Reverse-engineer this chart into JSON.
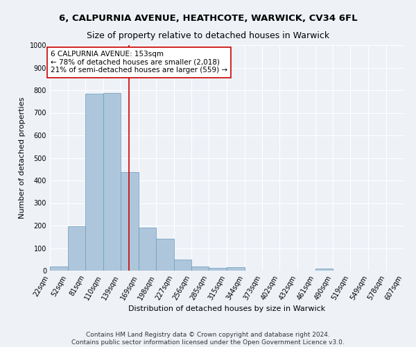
{
  "title": "6, CALPURNIA AVENUE, HEATHCOTE, WARWICK, CV34 6FL",
  "subtitle": "Size of property relative to detached houses in Warwick",
  "xlabel": "Distribution of detached houses by size in Warwick",
  "ylabel": "Number of detached properties",
  "bar_color": "#aec6db",
  "bar_edge_color": "#6699bb",
  "vline_color": "#cc0000",
  "vline_x": 153,
  "annotation_text": "6 CALPURNIA AVENUE: 153sqm\n← 78% of detached houses are smaller (2,018)\n21% of semi-detached houses are larger (559) →",
  "annotation_box_color": "#ffffff",
  "annotation_box_edge_color": "#cc0000",
  "footer_text": "Contains HM Land Registry data © Crown copyright and database right 2024.\nContains public sector information licensed under the Open Government Licence v3.0.",
  "bin_edges": [
    22,
    52,
    81,
    110,
    139,
    169,
    198,
    227,
    256,
    285,
    315,
    344,
    373,
    402,
    432,
    461,
    490,
    519,
    549,
    578,
    607
  ],
  "bar_heights": [
    20,
    197,
    785,
    788,
    437,
    190,
    142,
    50,
    17,
    13,
    14,
    0,
    0,
    0,
    0,
    10,
    0,
    0,
    0,
    0
  ],
  "ylim": [
    0,
    1000
  ],
  "ytick_interval": 100,
  "background_color": "#eef2f7",
  "grid_color": "#ffffff",
  "title_fontsize": 9.5,
  "subtitle_fontsize": 9,
  "axis_label_fontsize": 8,
  "tick_fontsize": 7,
  "annotation_fontsize": 7.5,
  "footer_fontsize": 6.5
}
